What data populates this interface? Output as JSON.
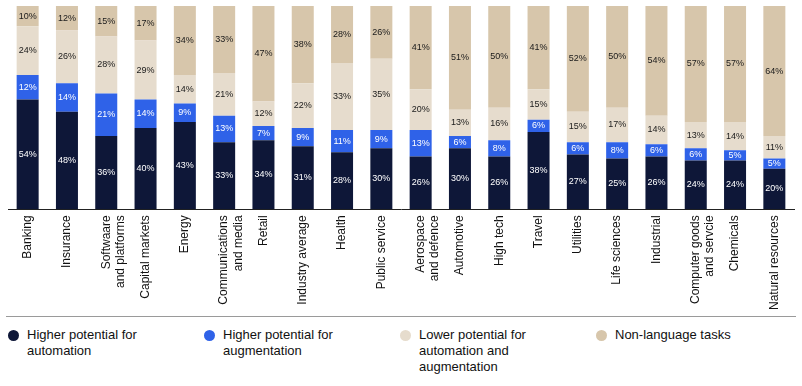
{
  "chart_data": {
    "type": "bar",
    "stacked": true,
    "data_labels": true,
    "tick_labels": "x",
    "grid": false,
    "legend": "bottom",
    "ylim": [
      0,
      100
    ],
    "categories": [
      "Banking",
      "Insurance",
      "Softwaare and platforms",
      "Capital markets",
      "Energy",
      "Communications and media",
      "Retail",
      "Industry average",
      "Health",
      "Public service",
      "Aerospace and defence",
      "Automotive",
      "High tech",
      "Travel",
      "Utilities",
      "Life sciences",
      "Industrial",
      "Computer goods and servcie",
      "Chemicals",
      "Natural resources"
    ],
    "series": [
      {
        "name": "Higher potential for automation",
        "color": "#0e1738",
        "values": [
          54,
          48,
          36,
          40,
          43,
          33,
          34,
          31,
          28,
          30,
          26,
          30,
          26,
          38,
          27,
          25,
          26,
          24,
          24,
          20
        ],
        "value_labels": [
          "54%",
          "48%",
          "36%",
          "40%",
          "43%",
          "33%",
          "34%",
          "31%",
          "28%",
          "30%",
          "26%",
          "30%",
          "26%",
          "38%",
          "27%",
          "25%",
          "26%",
          "24%",
          "24%",
          "20%"
        ]
      },
      {
        "name": "Higher potential for augmentation",
        "color": "#2f62e8",
        "values": [
          12,
          14,
          21,
          14,
          9,
          13,
          7,
          9,
          11,
          9,
          13,
          6,
          8,
          6,
          6,
          8,
          6,
          6,
          5,
          5
        ],
        "value_labels": [
          "12%",
          "14%",
          "21%",
          "14%",
          "9%",
          "13%",
          "7%",
          "9%",
          "11%",
          "9%",
          "13%",
          "6%",
          "8%",
          "6%",
          "6%",
          "8%",
          "6%",
          "6%",
          "5%",
          "5%"
        ]
      },
      {
        "name": "Lower potential for automation and augmentation",
        "color": "#e6dccd",
        "values": [
          24,
          26,
          28,
          29,
          14,
          21,
          12,
          22,
          33,
          35,
          20,
          13,
          16,
          15,
          15,
          17,
          14,
          13,
          14,
          11
        ],
        "value_labels": [
          "24%",
          "26%",
          "28%",
          "29%",
          "14%",
          "21%",
          "12%",
          "22%",
          "33%",
          "35%",
          "20%",
          "13%",
          "16%",
          "15%",
          "15%",
          "17%",
          "14%",
          "13%",
          "14%",
          "11%"
        ]
      },
      {
        "name": "Non-language tasks",
        "color": "#d7c6ab",
        "values": [
          10,
          12,
          15,
          17,
          34,
          33,
          47,
          38,
          28,
          26,
          41,
          51,
          50,
          41,
          52,
          50,
          54,
          57,
          57,
          64
        ],
        "value_labels": [
          "10%",
          "12%",
          "15%",
          "17%",
          "34%",
          "33%",
          "47%",
          "38%",
          "28%",
          "26%",
          "41%",
          "51%",
          "50%",
          "41%",
          "52%",
          "50%",
          "54%",
          "57%",
          "57%",
          "64%"
        ]
      }
    ]
  }
}
